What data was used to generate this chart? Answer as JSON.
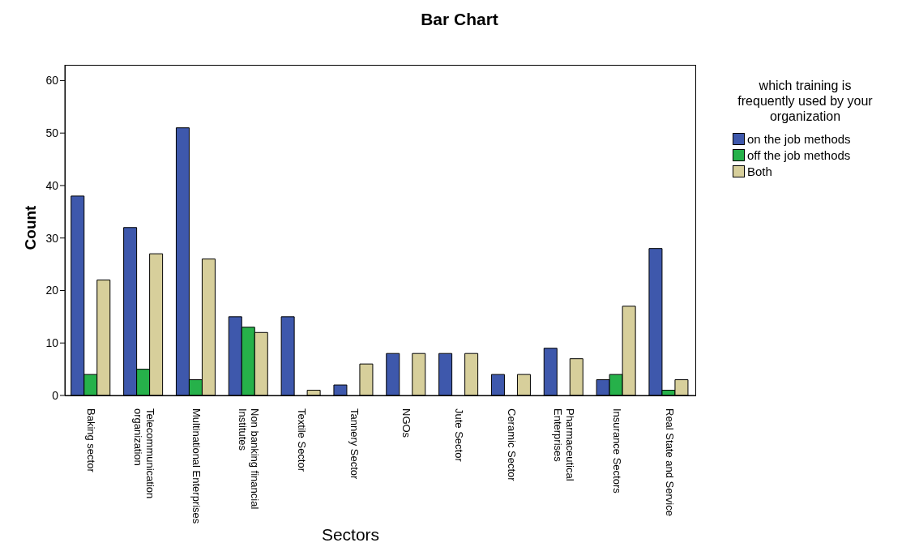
{
  "chart_data": {
    "type": "bar",
    "title": "Bar Chart",
    "xlabel": "Sectors",
    "ylabel": "Count",
    "legend_title": "which training is\nfrequently used by your\norganization",
    "categories": [
      "Baking sector",
      "Telecommunication\norganization",
      "Multinational Enterprises",
      "Non banking financial\nInstitutes",
      "Textile Sector",
      "Tannery Sector",
      "NGOs",
      "Jute Sector",
      "Ceramic Sector",
      "Pharmaceutical\nEnterprises",
      "Insurance Sectors",
      "Real State and Service"
    ],
    "series": [
      {
        "name": "on the job methods",
        "color": "#3e58ac",
        "values": [
          38,
          32,
          51,
          15,
          15,
          2,
          8,
          8,
          4,
          9,
          3,
          28
        ]
      },
      {
        "name": "off the job methods",
        "color": "#26b14a",
        "values": [
          4,
          5,
          3,
          13,
          null,
          null,
          null,
          null,
          null,
          null,
          4,
          1
        ]
      },
      {
        "name": "Both",
        "color": "#d7cf9b",
        "values": [
          22,
          27,
          26,
          12,
          1,
          6,
          8,
          8,
          4,
          7,
          17,
          3
        ]
      }
    ],
    "ylim": [
      0,
      63
    ],
    "yticks": [
      0,
      10,
      20,
      30,
      40,
      50,
      60
    ],
    "legend": "right"
  }
}
